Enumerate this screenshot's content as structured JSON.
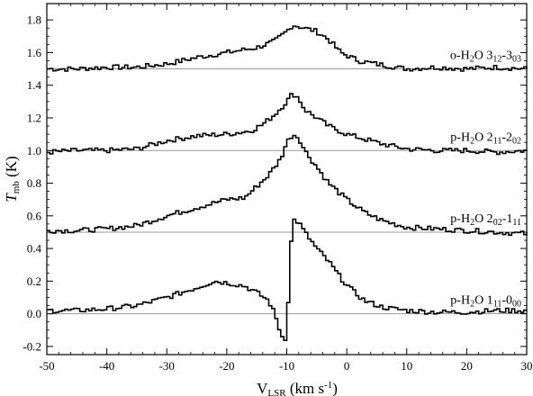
{
  "chart_data": {
    "type": "line",
    "title": "",
    "xlabel": {
      "main": "V",
      "sub": "LSR",
      "rest": " (km s",
      "sup": "-1",
      "close": ")"
    },
    "ylabel": {
      "main": "T",
      "sub": "mb",
      "rest": " (K)"
    },
    "xlim": [
      -50,
      30
    ],
    "ylim": [
      -0.25,
      1.9
    ],
    "x_ticks": [
      -50,
      -40,
      -30,
      -20,
      -10,
      0,
      10,
      20,
      30
    ],
    "x_tick_labels": [
      "-50",
      "-40",
      "-30",
      "-20",
      "-10",
      "0",
      "10",
      "20",
      "30"
    ],
    "y_ticks": [
      -0.2,
      0.0,
      0.2,
      0.4,
      0.6,
      0.8,
      1.0,
      1.2,
      1.4,
      1.6,
      1.8
    ],
    "y_tick_labels": [
      "-0.2",
      "0.0",
      "0.2",
      "0.4",
      "0.6",
      "0.8",
      "1.0",
      "1.2",
      "1.4",
      "1.6",
      "1.8"
    ],
    "grid": false,
    "line_color": "#000000",
    "baseline_color": "#999999",
    "series": [
      {
        "label": {
          "pre": "o-H",
          "s1": "2",
          "mid": "O 3",
          "s2": "12",
          "dash": "-3",
          "s3": "03"
        },
        "offset": 1.5,
        "x": [
          -50,
          -45,
          -40,
          -35,
          -30,
          -25,
          -20,
          -15,
          -12,
          -10,
          -9,
          -8,
          -7,
          -5,
          -3,
          -1,
          2,
          5,
          10,
          15,
          20,
          25,
          30
        ],
        "y": [
          1.5,
          1.5,
          1.51,
          1.51,
          1.53,
          1.57,
          1.6,
          1.63,
          1.67,
          1.73,
          1.77,
          1.76,
          1.75,
          1.73,
          1.68,
          1.6,
          1.55,
          1.53,
          1.5,
          1.51,
          1.5,
          1.51,
          1.5
        ]
      },
      {
        "label": {
          "pre": "p-H",
          "s1": "2",
          "mid": "O 2",
          "s2": "11",
          "dash": "-2",
          "s3": "02"
        },
        "offset": 1.0,
        "x": [
          -50,
          -45,
          -40,
          -35,
          -30,
          -25,
          -20,
          -16,
          -14,
          -12,
          -10,
          -9,
          -8,
          -7,
          -5,
          -3,
          0,
          3,
          6,
          10,
          15,
          20,
          25,
          30
        ],
        "y": [
          0.99,
          1.0,
          1.0,
          1.01,
          1.06,
          1.09,
          1.1,
          1.12,
          1.16,
          1.22,
          1.3,
          1.35,
          1.32,
          1.25,
          1.2,
          1.15,
          1.1,
          1.07,
          1.04,
          1.01,
          1.0,
          1.0,
          0.99,
          1.0
        ]
      },
      {
        "label": {
          "pre": "p-H",
          "s1": "2",
          "mid": "O 2",
          "s2": "02",
          "dash": "-1",
          "s3": "11"
        },
        "offset": 0.5,
        "x": [
          -50,
          -45,
          -40,
          -35,
          -30,
          -25,
          -20,
          -17,
          -15,
          -13,
          -11,
          -10,
          -9,
          -8,
          -7,
          -5,
          -3,
          0,
          3,
          6,
          10,
          15,
          20,
          25,
          30
        ],
        "y": [
          0.51,
          0.51,
          0.52,
          0.54,
          0.6,
          0.65,
          0.7,
          0.71,
          0.78,
          0.85,
          0.95,
          1.05,
          1.1,
          1.08,
          1.0,
          0.9,
          0.8,
          0.7,
          0.62,
          0.57,
          0.53,
          0.52,
          0.51,
          0.5,
          0.49
        ]
      },
      {
        "label": {
          "pre": "p-H",
          "s1": "2",
          "mid": "O 1",
          "s2": "11",
          "dash": "-0",
          "s3": "00"
        },
        "offset": 0.0,
        "x": [
          -50,
          -45,
          -40,
          -35,
          -30,
          -25,
          -22,
          -20,
          -17,
          -15,
          -13,
          -12,
          -11,
          -10.5,
          -10,
          -9.5,
          -9,
          -8,
          -7,
          -6,
          -5,
          -3,
          -1,
          1,
          3,
          6,
          10,
          15,
          20,
          25,
          30
        ],
        "y": [
          0.02,
          0.02,
          0.03,
          0.05,
          0.1,
          0.16,
          0.2,
          0.19,
          0.17,
          0.13,
          0.08,
          0.0,
          -0.12,
          -0.16,
          -0.14,
          0.3,
          0.58,
          0.56,
          0.5,
          0.45,
          0.4,
          0.32,
          0.22,
          0.14,
          0.08,
          0.04,
          0.02,
          0.01,
          0.01,
          0.02,
          0.02
        ]
      }
    ]
  }
}
